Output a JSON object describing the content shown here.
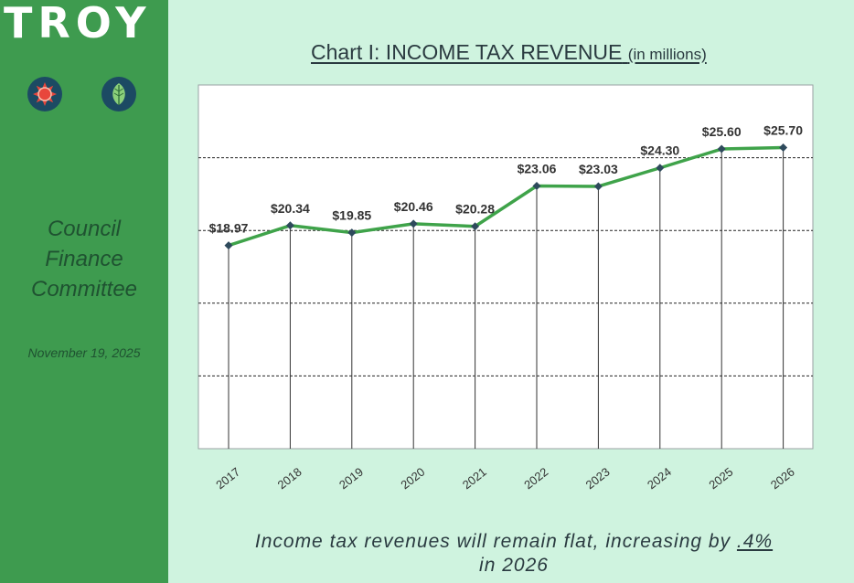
{
  "sidebar": {
    "logo": "TROY",
    "icons": [
      "sun-icon",
      "leaf-icon"
    ],
    "committee_lines": [
      "Council",
      "Finance",
      "Committee"
    ],
    "date": "November 19, 2025"
  },
  "colors": {
    "sidebar": "#3e9b4f",
    "background": "#cff3df",
    "line": "#3fa34a",
    "marker": "#2e4a5c"
  },
  "chart_data": {
    "type": "line",
    "title": "Chart I: INCOME TAX REVENUE",
    "title_unit": "(in millions)",
    "categories": [
      "2017",
      "2018",
      "2019",
      "2020",
      "2021",
      "2022",
      "2023",
      "2024",
      "2025",
      "2026"
    ],
    "values": [
      18.97,
      20.34,
      19.85,
      20.46,
      20.28,
      23.06,
      23.03,
      24.3,
      25.6,
      25.7
    ],
    "data_labels": [
      "$18.97",
      "$20.34",
      "$19.85",
      "$20.46",
      "$20.28",
      "$23.06",
      "$23.03",
      "$24.30",
      "$25.60",
      "$25.70"
    ],
    "ylim": [
      5,
      30
    ],
    "gridlines": [
      10,
      15,
      20,
      25
    ],
    "grid": true,
    "legend": "none"
  },
  "footnote": {
    "prefix": "Income tax revenues will remain flat, increasing by ",
    "pct": ".4%",
    "suffix": "in 2026"
  }
}
